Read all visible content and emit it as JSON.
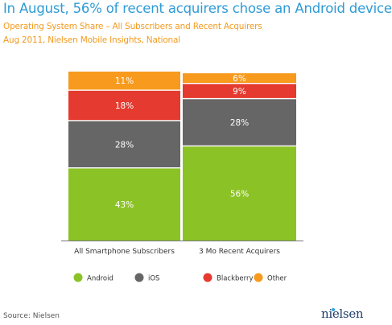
{
  "title": "In August, 56% of recent acquirers chose an Android device",
  "subtitle": "Operating System Share – All Subscribers and Recent Acquirers",
  "subtitle2": "Aug 2011, Nielsen Mobile Insights, National",
  "source": "Source: Nielsen",
  "logo_text": "nielsen",
  "colors": {
    "Android": "#8bc326",
    "iOS": "#666666",
    "Blackberry": "#e53a2f",
    "Other": "#f79a1d"
  },
  "chart_data": {
    "type": "bar",
    "stacked": true,
    "categories": [
      "All Smartphone Subscribers",
      "3 Mo Recent Acquirers"
    ],
    "series": [
      {
        "name": "Android",
        "values": [
          43,
          56
        ],
        "labels": [
          "43%",
          "56%"
        ]
      },
      {
        "name": "iOS",
        "values": [
          28,
          28
        ],
        "labels": [
          "28%",
          "28%"
        ]
      },
      {
        "name": "Blackberry",
        "values": [
          18,
          9
        ],
        "labels": [
          "18%",
          "9%"
        ]
      },
      {
        "name": "Other",
        "values": [
          11,
          6
        ],
        "labels": [
          "11%",
          "6%"
        ]
      }
    ],
    "ylim": [
      0,
      100
    ],
    "legend_position": "bottom",
    "grid": false
  }
}
